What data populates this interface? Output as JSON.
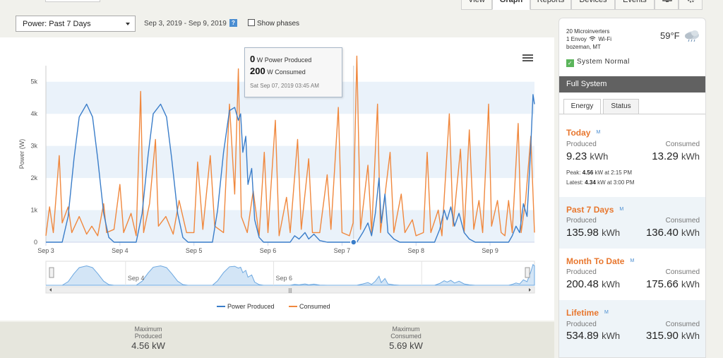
{
  "nav": {
    "tabs": [
      "View",
      "Graph",
      "Reports",
      "Devices",
      "Events"
    ],
    "active_tab": "Graph",
    "icons": [
      "monitor-icon",
      "gear-icon"
    ]
  },
  "controls": {
    "power_select": "Power: Past 7 Days",
    "date_range": "Sep 3, 2019 - Sep 9, 2019",
    "help": "?",
    "show_phases": "Show phases"
  },
  "tooltip": {
    "produced_value": "0",
    "produced_label": "W Power Produced",
    "consumed_value": "200",
    "consumed_label": "W Consumed",
    "time": "Sat Sep 07, 2019 03:45 AM"
  },
  "chart_data": {
    "type": "line",
    "title": "",
    "xlabel": "",
    "ylabel": "Power (W)",
    "ylim": [
      0,
      5500
    ],
    "yticks": [
      "0",
      "1k",
      "2k",
      "3k",
      "4k",
      "5k"
    ],
    "x_tick_labels": [
      "Sep 3",
      "Sep 4",
      "Sep 5",
      "Sep 6",
      "Sep 7",
      "Sep 8",
      "Sep 9"
    ],
    "x_unit": "days since Sep 3 00:00",
    "xlim": [
      0,
      6.6
    ],
    "grid": "horizontal bands",
    "legend": "bottom-center",
    "series": [
      {
        "name": "Power Produced",
        "color": "#3a7dc9",
        "points": [
          [
            0,
            0
          ],
          [
            0.22,
            0
          ],
          [
            0.3,
            800
          ],
          [
            0.38,
            2600
          ],
          [
            0.45,
            3900
          ],
          [
            0.55,
            4300
          ],
          [
            0.63,
            3900
          ],
          [
            0.7,
            2600
          ],
          [
            0.78,
            900
          ],
          [
            0.85,
            150
          ],
          [
            0.92,
            0
          ],
          [
            1.22,
            0
          ],
          [
            1.3,
            900
          ],
          [
            1.38,
            2700
          ],
          [
            1.45,
            4000
          ],
          [
            1.55,
            4300
          ],
          [
            1.63,
            3900
          ],
          [
            1.7,
            2600
          ],
          [
            1.78,
            900
          ],
          [
            1.85,
            150
          ],
          [
            1.92,
            0
          ],
          [
            2.25,
            0
          ],
          [
            2.32,
            1000
          ],
          [
            2.4,
            2800
          ],
          [
            2.48,
            4100
          ],
          [
            2.55,
            4200
          ],
          [
            2.6,
            3800
          ],
          [
            2.63,
            4000
          ],
          [
            2.66,
            2800
          ],
          [
            2.7,
            3300
          ],
          [
            2.73,
            1800
          ],
          [
            2.78,
            2300
          ],
          [
            2.82,
            700
          ],
          [
            2.88,
            150
          ],
          [
            2.94,
            0
          ],
          [
            3.3,
            0
          ],
          [
            3.36,
            200
          ],
          [
            3.42,
            100
          ],
          [
            3.5,
            300
          ],
          [
            3.55,
            100
          ],
          [
            3.62,
            250
          ],
          [
            3.7,
            50
          ],
          [
            3.8,
            0
          ],
          [
            4.2,
            0
          ],
          [
            4.28,
            300
          ],
          [
            4.35,
            600
          ],
          [
            4.4,
            200
          ],
          [
            4.45,
            900
          ],
          [
            4.5,
            2000
          ],
          [
            4.53,
            600
          ],
          [
            4.58,
            1500
          ],
          [
            4.62,
            300
          ],
          [
            4.7,
            100
          ],
          [
            4.78,
            0
          ],
          [
            5.25,
            0
          ],
          [
            5.32,
            400
          ],
          [
            5.38,
            1000
          ],
          [
            5.42,
            700
          ],
          [
            5.47,
            1100
          ],
          [
            5.52,
            500
          ],
          [
            5.58,
            900
          ],
          [
            5.65,
            300
          ],
          [
            5.72,
            100
          ],
          [
            5.8,
            0
          ],
          [
            6.25,
            0
          ],
          [
            6.3,
            200
          ],
          [
            6.35,
            500
          ],
          [
            6.4,
            300
          ],
          [
            6.45,
            1200
          ],
          [
            6.5,
            800
          ],
          [
            6.55,
            3000
          ],
          [
            6.58,
            4600
          ],
          [
            6.6,
            4300
          ]
        ]
      },
      {
        "name": "Consumed",
        "color": "#f0883e",
        "points": [
          [
            0,
            200
          ],
          [
            0.05,
            1100
          ],
          [
            0.1,
            300
          ],
          [
            0.18,
            2700
          ],
          [
            0.22,
            600
          ],
          [
            0.3,
            1100
          ],
          [
            0.35,
            300
          ],
          [
            0.45,
            800
          ],
          [
            0.55,
            250
          ],
          [
            0.62,
            500
          ],
          [
            0.7,
            200
          ],
          [
            0.78,
            1200
          ],
          [
            0.82,
            300
          ],
          [
            0.92,
            400
          ],
          [
            1.0,
            1800
          ],
          [
            1.05,
            300
          ],
          [
            1.15,
            900
          ],
          [
            1.22,
            200
          ],
          [
            1.28,
            4700
          ],
          [
            1.32,
            300
          ],
          [
            1.4,
            1200
          ],
          [
            1.48,
            3200
          ],
          [
            1.52,
            500
          ],
          [
            1.62,
            800
          ],
          [
            1.72,
            250
          ],
          [
            1.8,
            1300
          ],
          [
            1.9,
            300
          ],
          [
            2.0,
            300
          ],
          [
            2.05,
            2500
          ],
          [
            2.12,
            400
          ],
          [
            2.22,
            2700
          ],
          [
            2.28,
            500
          ],
          [
            2.4,
            300
          ],
          [
            2.48,
            4300
          ],
          [
            2.55,
            1500
          ],
          [
            2.6,
            5400
          ],
          [
            2.64,
            800
          ],
          [
            2.72,
            300
          ],
          [
            2.8,
            1600
          ],
          [
            2.88,
            200
          ],
          [
            2.95,
            2800
          ],
          [
            3.0,
            300
          ],
          [
            3.1,
            3800
          ],
          [
            3.15,
            200
          ],
          [
            3.25,
            1400
          ],
          [
            3.3,
            300
          ],
          [
            3.4,
            3200
          ],
          [
            3.45,
            400
          ],
          [
            3.55,
            2600
          ],
          [
            3.6,
            300
          ],
          [
            3.7,
            300
          ],
          [
            3.8,
            2100
          ],
          [
            3.85,
            400
          ],
          [
            3.95,
            4200
          ],
          [
            4.0,
            300
          ],
          [
            4.1,
            200
          ],
          [
            4.15,
            600
          ],
          [
            4.2,
            5800
          ],
          [
            4.25,
            400
          ],
          [
            4.35,
            2400
          ],
          [
            4.4,
            300
          ],
          [
            4.48,
            4300
          ],
          [
            4.52,
            300
          ],
          [
            4.65,
            2800
          ],
          [
            4.7,
            300
          ],
          [
            4.8,
            1500
          ],
          [
            4.85,
            300
          ],
          [
            4.95,
            700
          ],
          [
            5.0,
            200
          ],
          [
            5.1,
            300
          ],
          [
            5.15,
            2800
          ],
          [
            5.2,
            300
          ],
          [
            5.3,
            1000
          ],
          [
            5.35,
            200
          ],
          [
            5.45,
            4000
          ],
          [
            5.5,
            500
          ],
          [
            5.6,
            2900
          ],
          [
            5.65,
            300
          ],
          [
            5.72,
            3500
          ],
          [
            5.78,
            400
          ],
          [
            5.85,
            1300
          ],
          [
            5.9,
            300
          ],
          [
            5.98,
            4300
          ],
          [
            6.02,
            500
          ],
          [
            6.1,
            1300
          ],
          [
            6.15,
            300
          ],
          [
            6.2,
            200
          ],
          [
            6.25,
            1300
          ],
          [
            6.3,
            300
          ],
          [
            6.38,
            3700
          ],
          [
            6.42,
            300
          ],
          [
            6.48,
            1300
          ],
          [
            6.55,
            3300
          ],
          [
            6.6,
            300
          ]
        ]
      }
    ]
  },
  "navigator": {
    "labels": [
      "Sep 4",
      "Sep 6"
    ]
  },
  "legend": {
    "produced": "Power Produced",
    "consumed": "Consumed"
  },
  "stats": {
    "max_produced_label": "Maximum Produced",
    "max_produced_value": "4.56 kW",
    "max_consumed_label": "Maximum Consumed",
    "max_consumed_value": "5.69 kW"
  },
  "sidebar": {
    "site_line1": "20 Microinverters",
    "site_line2": "1 Envoy",
    "site_wifi": "Wi-Fi",
    "site_line3": "bozeman, MT",
    "temperature": "59°F",
    "status": "System Normal",
    "full_system": "Full System",
    "tabs": [
      "Energy",
      "Status"
    ],
    "produced_label": "Produced",
    "consumed_label": "Consumed",
    "m_badge": "M",
    "unit": "kWh",
    "today": {
      "title": "Today",
      "produced": "9.23",
      "consumed": "13.29",
      "peak_prefix": "Peak:",
      "peak_value": "4.56",
      "peak_suffix": "kW at 2:15 PM",
      "latest_prefix": "Latest:",
      "latest_value": "4.34",
      "latest_suffix": "kW at 3:00 PM"
    },
    "past7": {
      "title": "Past 7 Days",
      "produced": "135.98",
      "consumed": "136.40"
    },
    "month": {
      "title": "Month To Date",
      "produced": "200.48",
      "consumed": "175.66"
    },
    "lifetime": {
      "title": "Lifetime",
      "produced": "534.89",
      "consumed": "315.90"
    }
  }
}
